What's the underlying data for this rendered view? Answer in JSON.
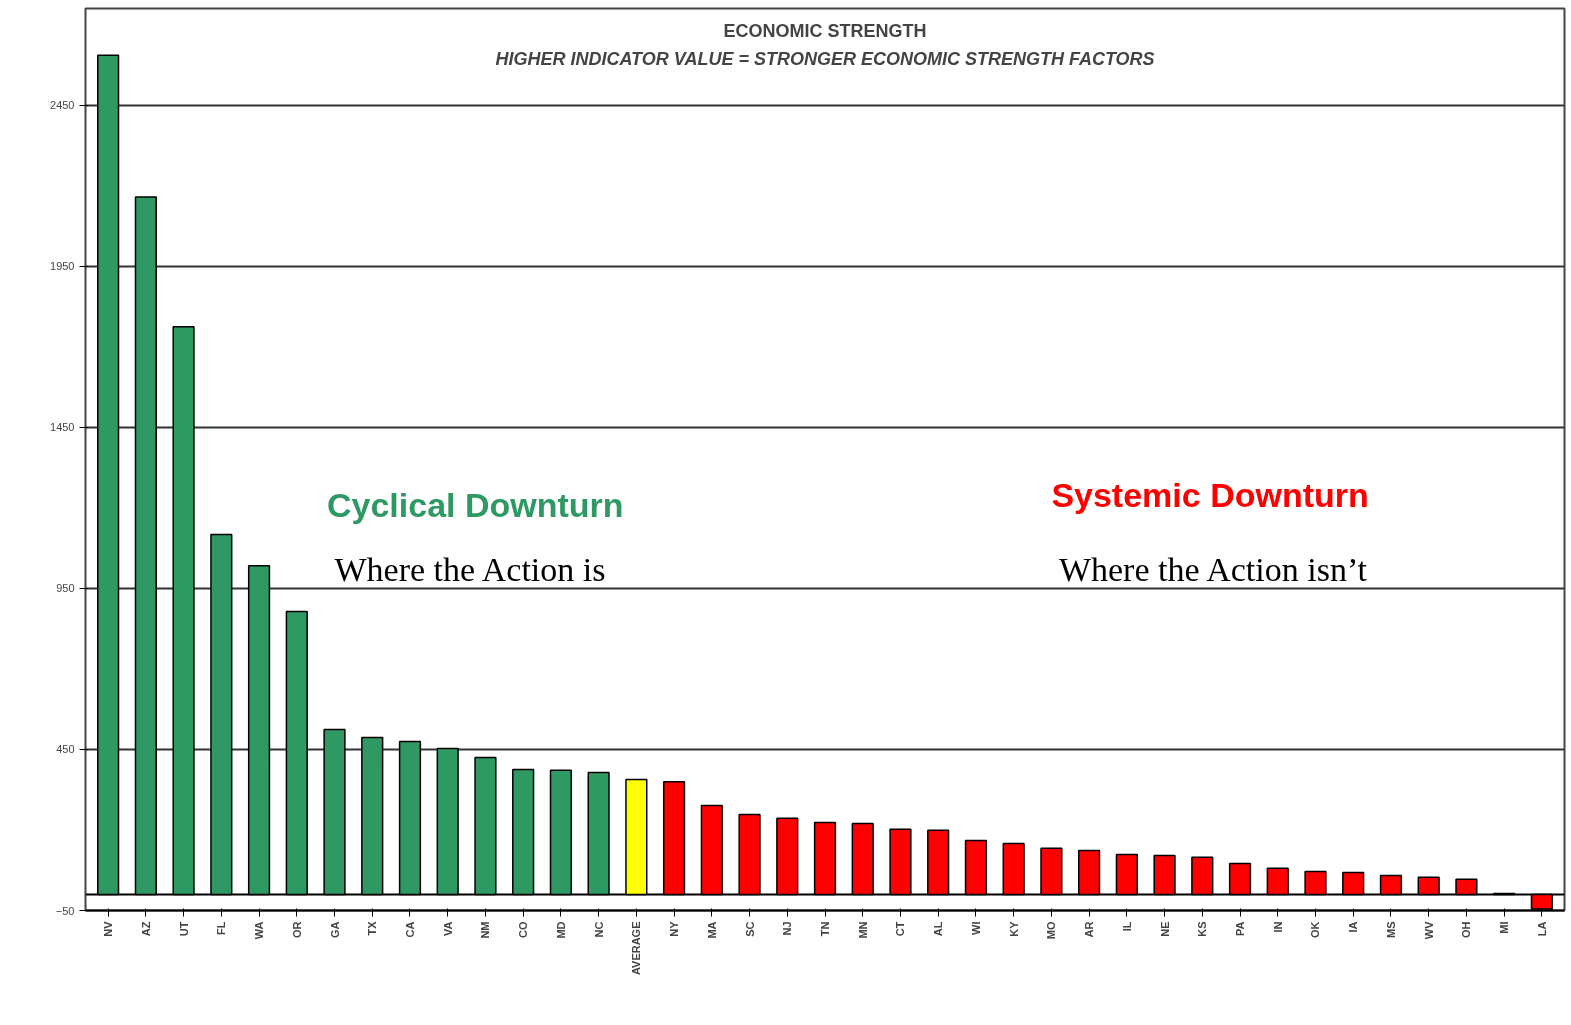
{
  "chart_data": {
    "type": "bar",
    "title": "ECONOMIC STRENGTH",
    "subtitle": "HIGHER INDICATOR VALUE = STRONGER ECONOMIC STRENGTH FACTORS",
    "categories": [
      "NV",
      "AZ",
      "UT",
      "FL",
      "WA",
      "OR",
      "GA",
      "TX",
      "CA",
      "VA",
      "NM",
      "CO",
      "MD",
      "NC",
      "AVERAGE",
      "NY",
      "MA",
      "SC",
      "NJ",
      "TN",
      "MN",
      "CT",
      "AL",
      "WI",
      "KY",
      "MO",
      "AR",
      "IL",
      "NE",
      "KS",
      "PA",
      "IN",
      "OK",
      "IA",
      "MS",
      "WV",
      "OH",
      "MI",
      "LA"
    ],
    "values": [
      2605,
      2165,
      1762,
      1117,
      1020,
      878,
      512,
      487,
      475,
      453,
      425,
      388,
      385,
      378,
      357,
      350,
      276,
      248,
      236,
      223,
      220,
      202,
      199,
      167,
      158,
      143,
      136,
      124,
      121,
      115,
      96,
      81,
      71,
      68,
      59,
      53,
      47,
      3,
      -45
    ],
    "colors": [
      "#2e9963",
      "#2e9963",
      "#2e9963",
      "#2e9963",
      "#2e9963",
      "#2e9963",
      "#2e9963",
      "#2e9963",
      "#2e9963",
      "#2e9963",
      "#2e9963",
      "#2e9963",
      "#2e9963",
      "#2e9963",
      "#ffff00",
      "#ff0000",
      "#ff0000",
      "#ff0000",
      "#ff0000",
      "#ff0000",
      "#ff0000",
      "#ff0000",
      "#ff0000",
      "#ff0000",
      "#ff0000",
      "#ff0000",
      "#ff0000",
      "#ff0000",
      "#ff0000",
      "#ff0000",
      "#ff0000",
      "#ff0000",
      "#ff0000",
      "#ff0000",
      "#ff0000",
      "#ff0000",
      "#ff0000",
      "#ff0000",
      "#ff0000"
    ],
    "ylim": [
      -50,
      2750
    ],
    "yticks": [
      -50,
      450,
      950,
      1450,
      1950,
      2450
    ],
    "grid": "y",
    "annotations": [
      "Cyclical Downturn",
      "Where the Action is",
      "Systemic Downturn",
      "Where the Action isn’t"
    ]
  }
}
